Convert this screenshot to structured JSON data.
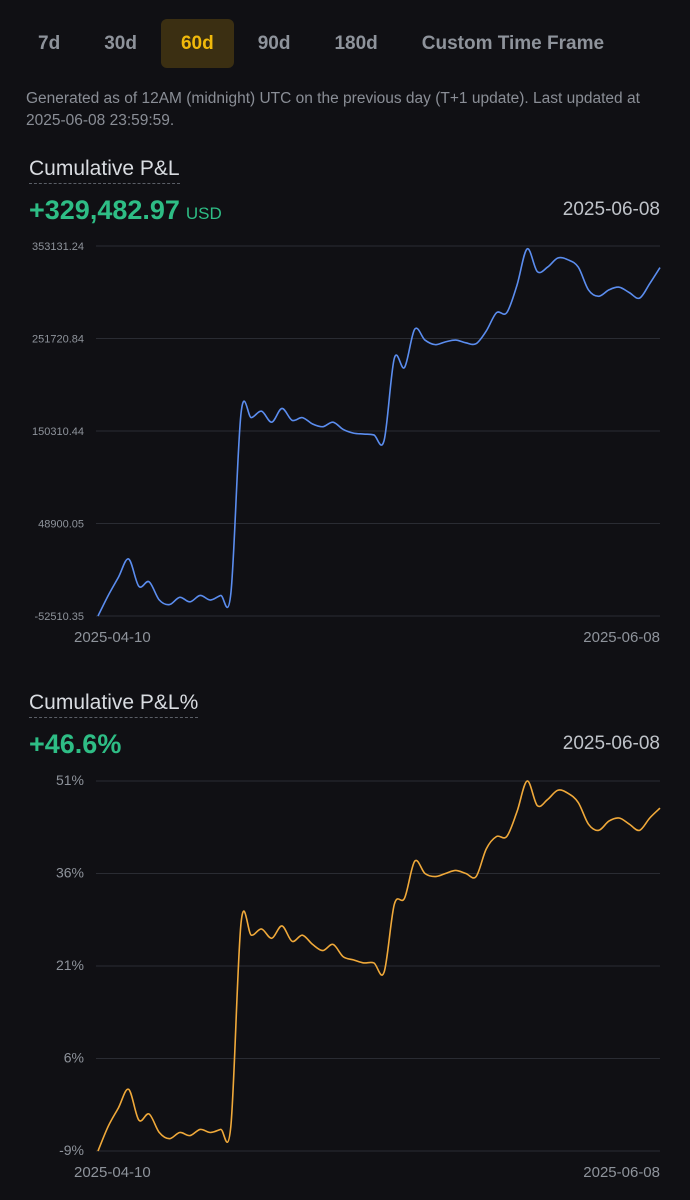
{
  "tabs": [
    {
      "label": "7d",
      "active": false
    },
    {
      "label": "30d",
      "active": false
    },
    {
      "label": "60d",
      "active": true
    },
    {
      "label": "90d",
      "active": false
    },
    {
      "label": "180d",
      "active": false
    },
    {
      "label": "Custom Time Frame",
      "active": false
    }
  ],
  "note": "Generated as of 12AM (midnight) UTC on the previous day (T+1 update). Last updated at 2025-06-08 23:59:59.",
  "pnl": {
    "title": "Cumulative P&L",
    "value": "+329,482.97",
    "unit": "USD",
    "date": "2025-06-08"
  },
  "pnl_pct": {
    "title": "Cumulative P&L%",
    "value": "+46.6%",
    "date": "2025-06-08"
  },
  "colors": {
    "positive": "#2ebd85",
    "accent": "#f0b90b",
    "line1": "#5b8def",
    "line2": "#f0a93a"
  },
  "chart_data": [
    {
      "type": "line",
      "title": "Cumulative P&L",
      "x_start": "2025-04-10",
      "x_end": "2025-06-08",
      "y_ticks": [
        "353131.24",
        "251720.84",
        "150310.44",
        "48900.05",
        "-52510.35"
      ],
      "ylim": [
        -52510.35,
        353131.24
      ],
      "grid": true,
      "series": [
        {
          "values": [
            -52510,
            -30000,
            -10000,
            10000,
            -20000,
            -15000,
            -35000,
            -40000,
            -32000,
            -37000,
            -30000,
            -35000,
            -30000,
            -28000,
            170000,
            165000,
            172000,
            160000,
            175000,
            162000,
            165000,
            158000,
            155000,
            160000,
            152000,
            148000,
            147000,
            146000,
            140000,
            230000,
            220000,
            262000,
            250000,
            245000,
            248000,
            250000,
            247000,
            246000,
            260000,
            280000,
            280000,
            310000,
            350000,
            325000,
            330000,
            340000,
            338000,
            330000,
            305000,
            298000,
            305000,
            308000,
            302000,
            296000,
            312000,
            329483
          ]
        }
      ]
    },
    {
      "type": "line",
      "title": "Cumulative P&L%",
      "x_start": "2025-04-10",
      "x_end": "2025-06-08",
      "y_ticks": [
        "51%",
        "36%",
        "21%",
        "6%",
        "-9%"
      ],
      "ylim": [
        -9,
        51
      ],
      "grid": true,
      "series": [
        {
          "values": [
            -9,
            -5,
            -2,
            1,
            -4,
            -3,
            -6,
            -7,
            -6,
            -6.5,
            -5.5,
            -6,
            -5.5,
            -5,
            28,
            26,
            27,
            25.5,
            27.5,
            25,
            26,
            24.5,
            23.5,
            24.5,
            22.5,
            22,
            21.5,
            21.5,
            20,
            31,
            32,
            38,
            36,
            35.5,
            36,
            36.5,
            36,
            35.5,
            40,
            42,
            42,
            46,
            51,
            47,
            48,
            49.5,
            49,
            47.5,
            44,
            43,
            44.5,
            45,
            44,
            43,
            45,
            46.6
          ]
        }
      ]
    }
  ]
}
